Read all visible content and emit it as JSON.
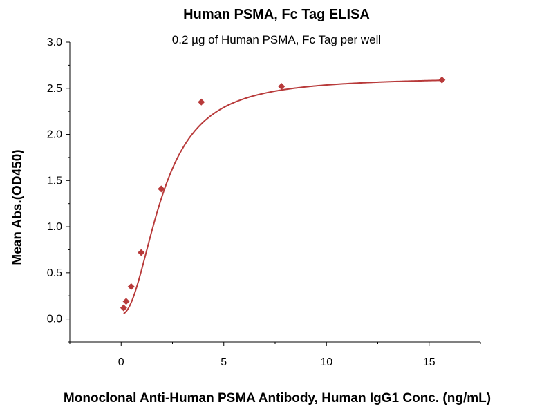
{
  "chart_data": {
    "type": "scatter",
    "title": "Human PSMA, Fc Tag ELISA",
    "subtitle": "0.2 µg of Human PSMA, Fc Tag per well",
    "xlabel": "Monoclonal Anti-Human PSMA Antibody, Human IgG1 Conc. (ng/mL)",
    "ylabel": "Mean Abs.(OD450)",
    "xlim": [
      -2.5,
      17.5
    ],
    "ylim": [
      -0.25,
      3.0
    ],
    "xticks": [
      0,
      5,
      10,
      15
    ],
    "yticks": [
      0.0,
      0.5,
      1.0,
      1.5,
      2.0,
      2.5,
      3.0
    ],
    "xtick_labels": [
      "0",
      "5",
      "10",
      "15"
    ],
    "ytick_labels": [
      "0.0",
      "0.5",
      "1.0",
      "1.5",
      "2.0",
      "2.5",
      "3.0"
    ],
    "grid": false,
    "legend": "none",
    "marker": "diamond",
    "color": "#b83a3a",
    "series": [
      {
        "x": [
          0.122,
          0.244,
          0.488,
          0.977,
          1.953,
          3.906,
          7.813,
          15.625
        ],
        "y": [
          0.12,
          0.19,
          0.35,
          0.72,
          1.41,
          2.35,
          2.52,
          2.59
        ]
      }
    ],
    "fit": {
      "type": "4PL",
      "bottom": 0.05,
      "top": 2.62,
      "ec50": 2.0,
      "hill": 2.1
    }
  }
}
